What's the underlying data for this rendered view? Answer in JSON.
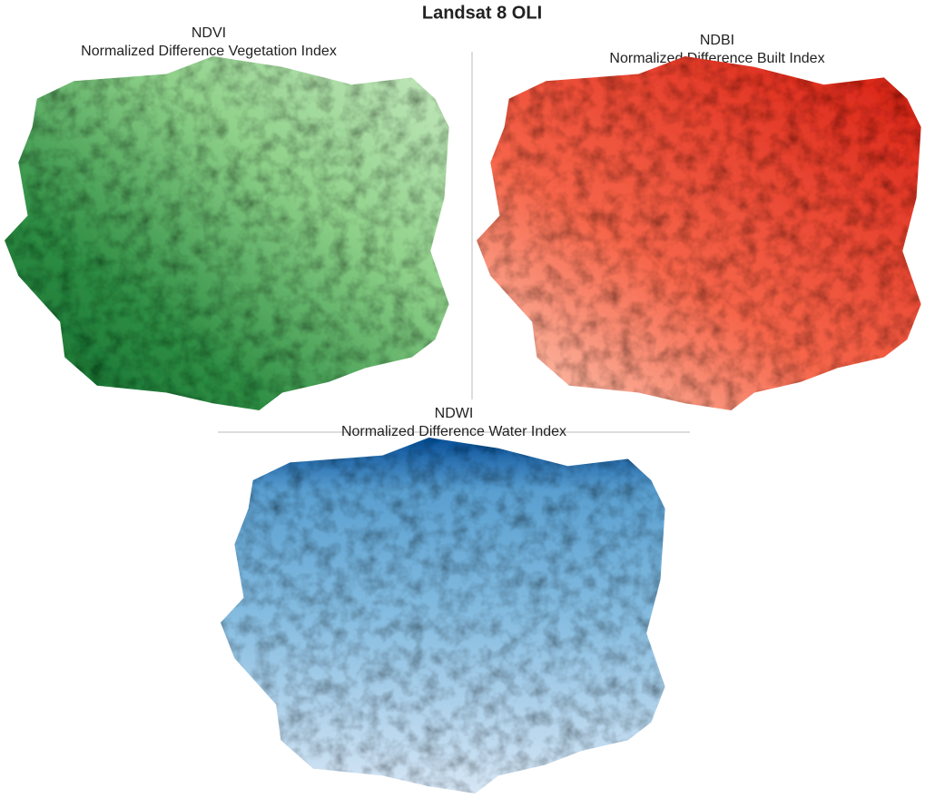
{
  "title": "Landsat 8 OLI",
  "panels": [
    {
      "name": "NDVI",
      "subtitle": "Normalized Difference Vegetation Index"
    },
    {
      "name": "NDBI",
      "subtitle": "Normalized Difference Built Index"
    },
    {
      "name": "NDWI",
      "subtitle": "Normalized Difference Water Index"
    }
  ]
}
